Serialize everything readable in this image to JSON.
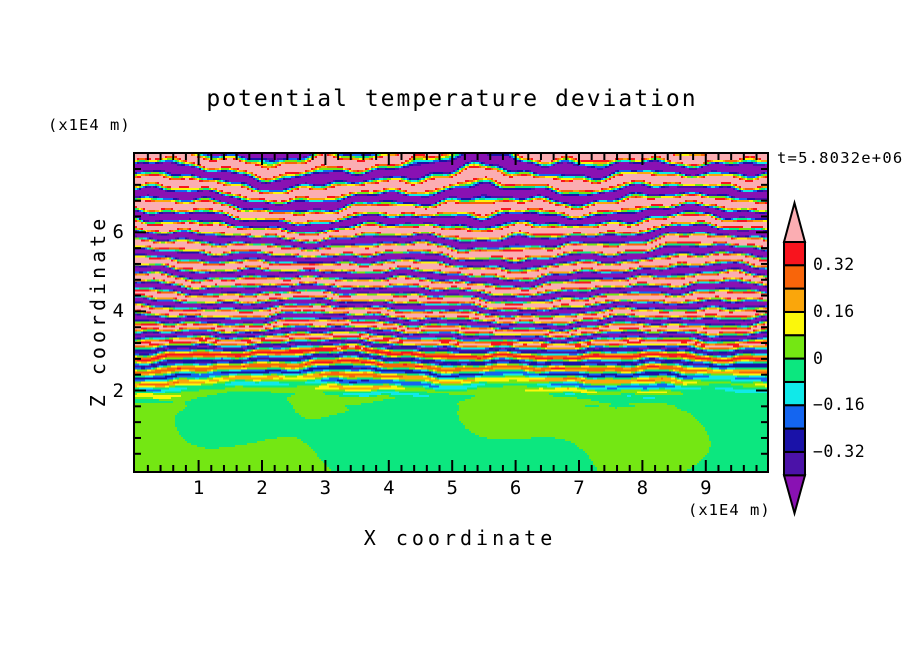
{
  "title": "potential temperature deviation",
  "time_label": "t=5.8032e+06",
  "axes": {
    "x": {
      "title": "X coordinate",
      "unit_label": "(x1E4 m)",
      "tick_labels": [
        "1",
        "2",
        "3",
        "4",
        "5",
        "6",
        "7",
        "8",
        "9"
      ],
      "tick_values": [
        1,
        2,
        3,
        4,
        5,
        6,
        7,
        8,
        9
      ],
      "minor_tick_step": 0.2,
      "range": [
        0,
        9.97
      ]
    },
    "z": {
      "title": "Z coordinate",
      "unit_label": "(x1E4 m)",
      "tick_labels": [
        "2",
        "4",
        "6"
      ],
      "tick_values": [
        2,
        4,
        6
      ],
      "minor_tick_step": 0.4,
      "range": [
        0,
        7.98
      ]
    }
  },
  "colorbar": {
    "tick_labels": [
      "0.32",
      "0.16",
      "0",
      "−0.16",
      "−0.32"
    ],
    "tick_values": [
      0.32,
      0.16,
      0,
      -0.16,
      -0.32
    ],
    "over_arrow": {
      "name": "pink",
      "hex": "#FBADB2",
      "from": 0.4
    },
    "under_arrow": {
      "name": "purple",
      "hex": "#8911B3",
      "to": -0.4
    },
    "segments": [
      {
        "name": "red",
        "hex": "#F8141E",
        "from": 0.32,
        "to": 0.4
      },
      {
        "name": "orange-red",
        "hex": "#F8650A",
        "from": 0.24,
        "to": 0.32
      },
      {
        "name": "orange",
        "hex": "#FAA60B",
        "from": 0.16,
        "to": 0.24
      },
      {
        "name": "yellow",
        "hex": "#FBF70B",
        "from": 0.08,
        "to": 0.16
      },
      {
        "name": "chartreuse",
        "hex": "#74E713",
        "from": 0.0,
        "to": 0.08
      },
      {
        "name": "spring-green",
        "hex": "#0CE77F",
        "from": -0.08,
        "to": 0.0
      },
      {
        "name": "cyan",
        "hex": "#10E9E9",
        "from": -0.16,
        "to": -0.08
      },
      {
        "name": "blue",
        "hex": "#1465F0",
        "from": -0.24,
        "to": -0.16
      },
      {
        "name": "navy",
        "hex": "#1A12A8",
        "from": -0.32,
        "to": -0.24
      },
      {
        "name": "indigo",
        "hex": "#4B12A8",
        "from": -0.4,
        "to": -0.32
      }
    ]
  },
  "chart_data": {
    "type": "heatmap",
    "title": "potential temperature deviation",
    "xlabel": "X coordinate",
    "ylabel": "Z coordinate",
    "axis_units": "(x1E4 m)",
    "time_annotation": "t=5.8032e+06",
    "x_range": [
      0,
      9.97
    ],
    "z_range": [
      0,
      7.98
    ],
    "contour_interval": 0.08,
    "contour_levels": [
      -0.4,
      -0.32,
      -0.24,
      -0.16,
      -0.08,
      0,
      0.08,
      0.16,
      0.24,
      0.32,
      0.4
    ],
    "colorbar_tick_values": [
      0.32,
      0.16,
      0,
      -0.16,
      -0.32
    ],
    "palette_low_to_high": [
      "#8911B3",
      "#4B12A8",
      "#1A12A8",
      "#1465F0",
      "#10E9E9",
      "#0CE77F",
      "#74E713",
      "#FBF70B",
      "#FAA60B",
      "#F8650A",
      "#F8141E",
      "#FBADB2"
    ],
    "field_structure": {
      "orientation": "horizontal turbulent layers",
      "regions": [
        {
          "z_range": [
            0,
            2.1
          ],
          "values": "-0.08 to 0.08",
          "appearance": "smooth interlocking green blobs (near-zero deviation)"
        },
        {
          "z_range": [
            2.1,
            3.6
          ],
          "values": "about -0.35 to 0.35",
          "appearance": "dense fine-scale horizontal striations cycling through all contour colors"
        },
        {
          "z_range": [
            3.6,
            7.98
          ],
          "values": "exceeds +/-0.40",
          "appearance": "thick wavy alternating pink (>0.40) and purple (<-0.40) layers with thin rainbow transition filaments"
        }
      ]
    }
  }
}
